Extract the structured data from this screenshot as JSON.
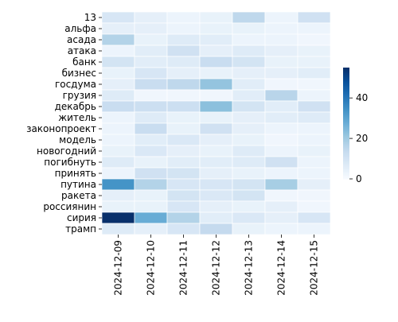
{
  "chart_data": {
    "type": "heatmap",
    "title": "",
    "xlabel": "",
    "ylabel": "",
    "x": [
      "2024-12-09",
      "2024-12-10",
      "2024-12-11",
      "2024-12-12",
      "2024-12-13",
      "2024-12-14",
      "2024-12-15"
    ],
    "y": [
      "13",
      "альфа",
      "асада",
      "атака",
      "банк",
      "бизнес",
      "госдума",
      "грузия",
      "декабрь",
      "житель",
      "законопроект",
      "модель",
      "новогодний",
      "погибнуть",
      "принять",
      "путина",
      "ракета",
      "россиянин",
      "сирия",
      "трамп"
    ],
    "values": [
      [
        9,
        5,
        3,
        4,
        15,
        3,
        11
      ],
      [
        5,
        5,
        3,
        4,
        4,
        3,
        3
      ],
      [
        17,
        4,
        7,
        6,
        3,
        3,
        2
      ],
      [
        3,
        6,
        11,
        5,
        7,
        5,
        4
      ],
      [
        10,
        6,
        7,
        13,
        10,
        4,
        4
      ],
      [
        4,
        9,
        5,
        4,
        5,
        5,
        6
      ],
      [
        5,
        13,
        15,
        22,
        6,
        2,
        2
      ],
      [
        7,
        2,
        2,
        2,
        6,
        16,
        3
      ],
      [
        13,
        12,
        12,
        23,
        10,
        6,
        11
      ],
      [
        3,
        7,
        4,
        4,
        5,
        6,
        7
      ],
      [
        3,
        13,
        4,
        11,
        5,
        3,
        3
      ],
      [
        3,
        6,
        8,
        5,
        4,
        2,
        3
      ],
      [
        4,
        8,
        5,
        4,
        7,
        3,
        4
      ],
      [
        7,
        4,
        6,
        6,
        7,
        11,
        3
      ],
      [
        3,
        11,
        10,
        5,
        4,
        3,
        3
      ],
      [
        34,
        17,
        9,
        9,
        10,
        19,
        5
      ],
      [
        5,
        4,
        10,
        8,
        10,
        2,
        2
      ],
      [
        4,
        4,
        9,
        5,
        4,
        5,
        2
      ],
      [
        55,
        28,
        17,
        6,
        8,
        5,
        9
      ],
      [
        7,
        5,
        9,
        14,
        4,
        3,
        3
      ]
    ],
    "colorbar": {
      "min": 0,
      "max": 55,
      "ticks": [
        0,
        20,
        40
      ],
      "colormap": "Blues"
    },
    "grid": false,
    "legend": "colorbar-right"
  }
}
